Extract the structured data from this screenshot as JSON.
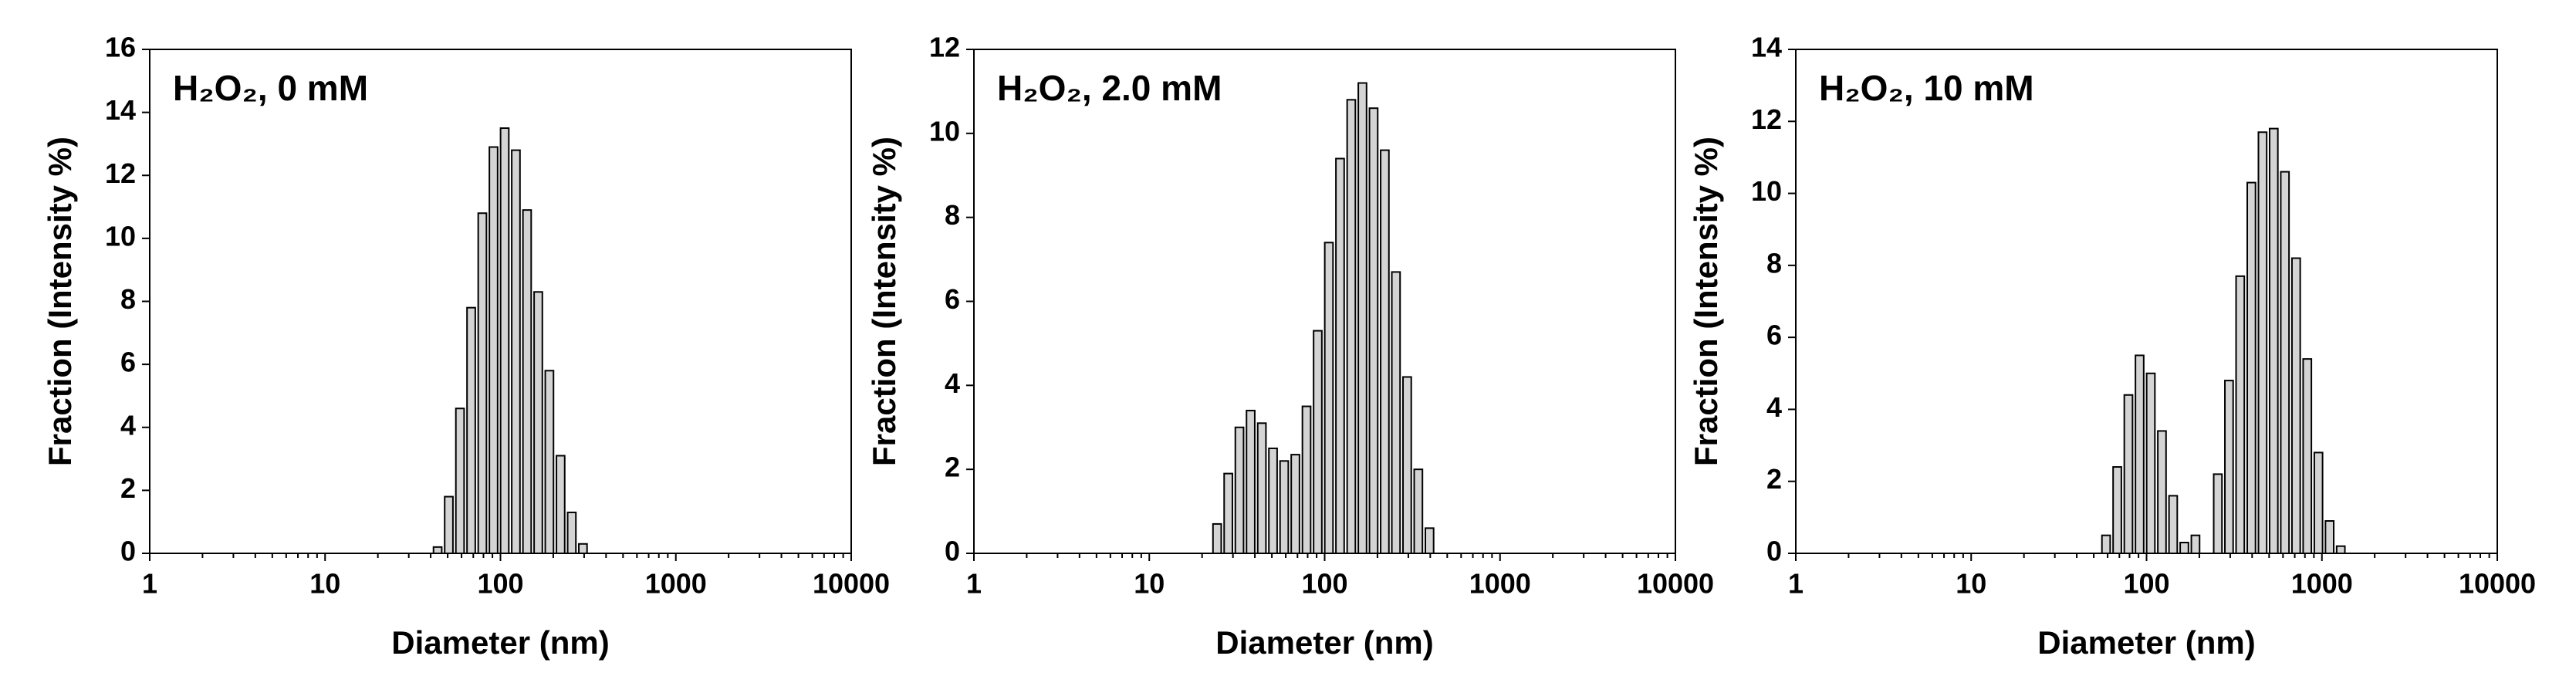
{
  "chart_data": [
    {
      "type": "bar",
      "annotation": "H₂O₂, 0 mM",
      "xlabel": "Diameter (nm)",
      "ylabel": "Fraction (Intensity %)",
      "xscale": "log",
      "xlim": [
        1,
        10000
      ],
      "xticks": [
        1,
        10,
        100,
        1000,
        10000
      ],
      "ylim": [
        0,
        16
      ],
      "yticks": [
        0,
        2,
        4,
        6,
        8,
        10,
        12,
        14,
        16
      ],
      "color": "#d4d4d4",
      "edgecolor": "#000000",
      "x": [
        43.82,
        50.75,
        58.77,
        68.06,
        78.82,
        91.28,
        105.7,
        122.4,
        141.8,
        164.2,
        190.1,
        220.2,
        255.0,
        295.3
      ],
      "values": [
        0.2,
        1.8,
        4.6,
        7.8,
        10.8,
        12.9,
        13.5,
        12.8,
        10.9,
        8.3,
        5.8,
        3.1,
        1.3,
        0.3
      ]
    },
    {
      "type": "bar",
      "annotation": "H₂O₂, 2.0 mM",
      "xlabel": "Diameter (nm)",
      "ylabel": "Fraction (Intensity %)",
      "xscale": "log",
      "xlim": [
        1,
        10000
      ],
      "xticks": [
        1,
        10,
        100,
        1000,
        10000
      ],
      "ylim": [
        0,
        12
      ],
      "yticks": [
        0,
        2,
        4,
        6,
        8,
        10,
        12
      ],
      "color": "#d4d4d4",
      "edgecolor": "#000000",
      "x": [
        24.36,
        28.21,
        32.67,
        37.84,
        43.82,
        50.75,
        58.77,
        68.06,
        78.82,
        91.28,
        105.7,
        122.4,
        141.8,
        164.2,
        190.1,
        220.2,
        255.0,
        295.3,
        342.0,
        396.1
      ],
      "values": [
        0.7,
        1.9,
        3.0,
        3.4,
        3.1,
        2.5,
        2.2,
        2.35,
        3.5,
        5.3,
        7.4,
        9.4,
        10.8,
        11.2,
        10.6,
        9.6,
        6.7,
        4.2,
        2.0,
        0.6
      ]
    },
    {
      "type": "bar",
      "annotation": "H₂O₂, 10 mM",
      "xlabel": "Diameter (nm)",
      "ylabel": "Fraction (Intensity %)",
      "xscale": "log",
      "xlim": [
        1,
        10000
      ],
      "xticks": [
        1,
        10,
        100,
        1000,
        10000
      ],
      "ylim": [
        0,
        14
      ],
      "yticks": [
        0,
        2,
        4,
        6,
        8,
        10,
        12,
        14
      ],
      "color": "#d4d4d4",
      "edgecolor": "#000000",
      "x": [
        58.77,
        68.06,
        78.82,
        91.28,
        105.7,
        122.4,
        141.8,
        164.2,
        190.1,
        255.0,
        295.3,
        342.0,
        396.1,
        458.7,
        531.2,
        615.1,
        712.4,
        825.0,
        955.4,
        1106,
        1281
      ],
      "values": [
        0.5,
        2.4,
        4.4,
        5.5,
        5.0,
        3.4,
        1.6,
        0.3,
        0.5,
        2.2,
        4.8,
        7.7,
        10.3,
        11.7,
        11.8,
        10.6,
        8.2,
        5.4,
        2.8,
        0.9,
        0.2
      ]
    }
  ]
}
